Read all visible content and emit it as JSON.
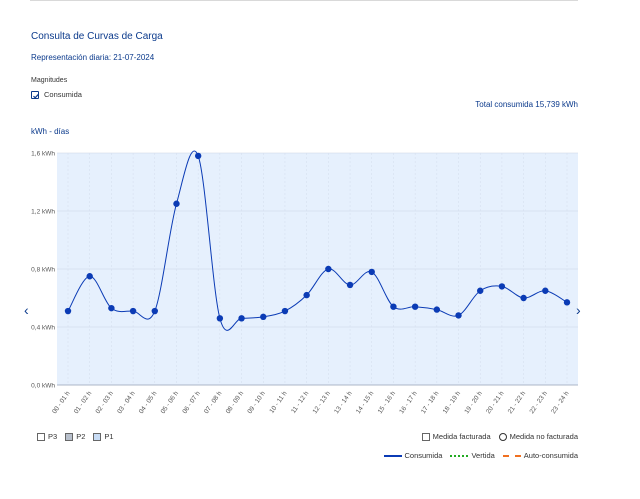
{
  "header": {
    "title": "Consulta de Curvas de Carga",
    "subtitle": "Representación diaria: 21-07-2024"
  },
  "magnitudes": {
    "title": "Magnitudes",
    "option_label": "Consumida",
    "checked": true
  },
  "total": "Total consumida  15,739 kWh",
  "chart_unit": "kWh - días",
  "chart_data": {
    "type": "line",
    "categories": [
      "00 - 01 h",
      "01 - 02 h",
      "02 - 03 h",
      "03 - 04 h",
      "04 - 05 h",
      "05 - 06 h",
      "06 - 07 h",
      "07 - 08 h",
      "08 - 09 h",
      "09 - 10 h",
      "10 - 11 h",
      "11 - 12 h",
      "12 - 13 h",
      "13 - 14 h",
      "14 - 15 h",
      "15 - 16 h",
      "16 - 17 h",
      "17 - 18 h",
      "18 - 19 h",
      "19 - 20 h",
      "20 - 21 h",
      "21 - 22 h",
      "22 - 23 h",
      "23 - 24 h"
    ],
    "series": [
      {
        "name": "Consumida",
        "values": [
          0.51,
          0.75,
          0.53,
          0.51,
          0.51,
          1.25,
          1.58,
          0.46,
          0.46,
          0.47,
          0.51,
          0.62,
          0.8,
          0.69,
          0.78,
          0.54,
          0.54,
          0.52,
          0.48,
          0.65,
          0.68,
          0.6,
          0.65,
          0.57
        ],
        "color": "#0b3bb5"
      }
    ],
    "y_ticks": [
      "0,0 kWh",
      "0,4 kWh",
      "0,8 kWh",
      "1,2 kWh",
      "1,6 kWh"
    ],
    "ylim": [
      0,
      1.6
    ],
    "grid": true,
    "background": "#e6f0fd"
  },
  "nav": {
    "prev": "‹",
    "next": "›"
  },
  "legend_periods": [
    {
      "label": "P3",
      "color": "#ffffff"
    },
    {
      "label": "P2",
      "color": "#b8c0cc"
    },
    {
      "label": "P1",
      "color": "#c8dcf5"
    }
  ],
  "legend_measures": [
    {
      "label": "Medida facturada",
      "icon": "square"
    },
    {
      "label": "Medida no facturada",
      "icon": "circle"
    }
  ],
  "legend_lines": [
    {
      "label": "Consumida",
      "color": "#0b3bb5",
      "style": "solid"
    },
    {
      "label": "Vertida",
      "color": "#22aa22",
      "style": "dotted"
    },
    {
      "label": "Auto-consumida",
      "color": "#f07020",
      "style": "dashed"
    }
  ]
}
